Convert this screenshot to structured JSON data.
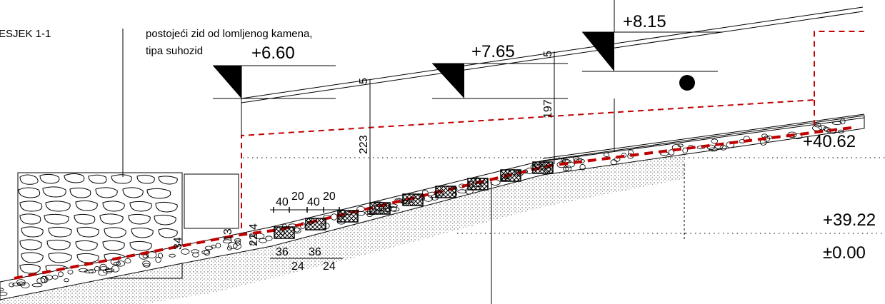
{
  "section_title": "ESJEK 1-1",
  "wall_note": {
    "line1": "postojeći zid od lomljenog kamena,",
    "line2": "tipa suhozid"
  },
  "levels": {
    "left_roof": "+6.60",
    "mid_roof": "+7.65",
    "right_roof": "+8.15",
    "terrain_top": "+40.62",
    "terrain_mid": "+39.22",
    "zero": "±0.00"
  },
  "dimensions": {
    "v_223": "223",
    "v_197": "197",
    "five_a": "5",
    "five_b": "5",
    "step_w1": "40",
    "step_g1": "20",
    "step_w2": "40",
    "step_g2": "20",
    "four": "4",
    "thirteen": "13",
    "twentytwo": "22",
    "thirtyfour": "34",
    "r36a": "36",
    "r36b": "36",
    "r24a": "24",
    "r24b": "24"
  },
  "colors": {
    "line": "#000000",
    "red_dash": "#c00000",
    "gravel": "#666666"
  }
}
